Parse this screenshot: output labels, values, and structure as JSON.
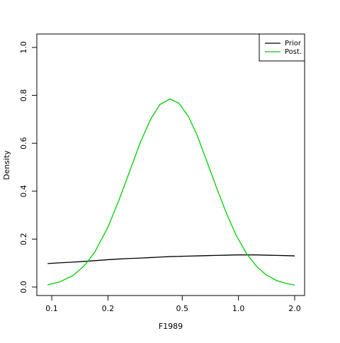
{
  "chart_data": {
    "type": "line",
    "xlabel": "F1989",
    "ylabel": "Density",
    "x": [
      0.095,
      0.11,
      0.13,
      0.15,
      0.17,
      0.2,
      0.23,
      0.26,
      0.3,
      0.34,
      0.38,
      0.43,
      0.48,
      0.54,
      0.6,
      0.68,
      0.76,
      0.86,
      0.97,
      1.1,
      1.25,
      1.4,
      1.6,
      1.8,
      2.0
    ],
    "series": [
      {
        "name": "Prior",
        "color": "#000000",
        "values": [
          0.098,
          0.101,
          0.104,
          0.107,
          0.11,
          0.114,
          0.117,
          0.119,
          0.121,
          0.123,
          0.125,
          0.127,
          0.128,
          0.129,
          0.13,
          0.131,
          0.132,
          0.133,
          0.134,
          0.134,
          0.134,
          0.133,
          0.132,
          0.131,
          0.13
        ]
      },
      {
        "name": "Post.",
        "color": "#00cd00",
        "values": [
          0.009,
          0.021,
          0.048,
          0.09,
          0.146,
          0.25,
          0.366,
          0.478,
          0.609,
          0.703,
          0.762,
          0.785,
          0.767,
          0.711,
          0.634,
          0.521,
          0.418,
          0.31,
          0.217,
          0.142,
          0.086,
          0.052,
          0.027,
          0.015,
          0.008
        ]
      }
    ],
    "xlog": true,
    "xlim": [
      0.0832,
      2.26
    ],
    "xticks": [
      0.1,
      0.2,
      0.5,
      {
        "value": 1,
        "label": "1.0"
      },
      {
        "value": 2,
        "label": "2.0"
      }
    ],
    "ylim": [
      -0.0355,
      1.056
    ],
    "yticks": [
      {
        "value": 0,
        "label": "0.0"
      },
      0.2,
      0.4,
      0.6,
      0.8,
      {
        "value": 1,
        "label": "1.0"
      }
    ],
    "legend": "top-right"
  }
}
